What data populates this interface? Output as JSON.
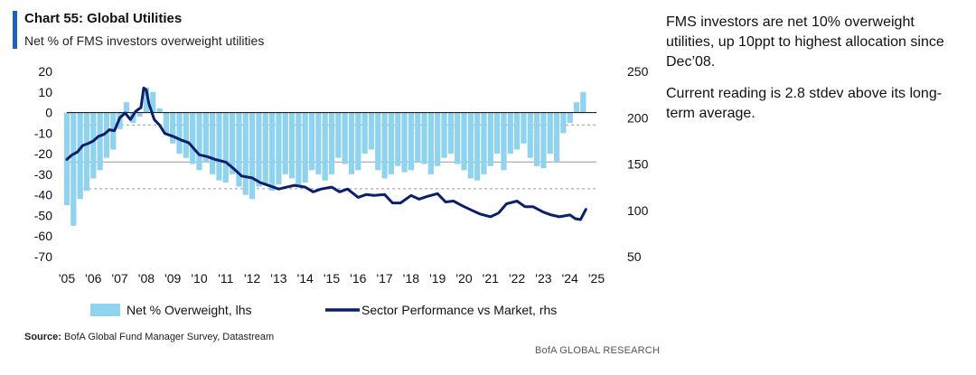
{
  "header": {
    "title": "Chart 55: Global Utilities",
    "subtitle": "Net % of FMS investors overweight utilities",
    "accent_color": "#1f5fbf"
  },
  "commentary": [
    "FMS investors are net 10% overweight utilities, up 10ppt to highest allocation since Dec’08.",
    "Current reading is 2.8 stdev above its long-term average."
  ],
  "source": {
    "label": "Source:",
    "text": " BofA Global Fund Manager Survey, Datastream"
  },
  "footer": "BofA GLOBAL RESEARCH",
  "chart_data": {
    "type": "bar+line",
    "x_tick_labels": [
      "'05",
      "'06",
      "'07",
      "'08",
      "'09",
      "'10",
      "'11",
      "'12",
      "'13",
      "'14",
      "'15",
      "'16",
      "'17",
      "'18",
      "'19",
      "'20",
      "'21",
      "'22",
      "'23",
      "'24",
      "'25"
    ],
    "xlim": [
      2005,
      2025
    ],
    "ylim_left": [
      -70,
      20
    ],
    "yticks_left": [
      20,
      10,
      0,
      -10,
      -20,
      -30,
      -40,
      -50,
      -60,
      -70
    ],
    "ylim_right": [
      50,
      250
    ],
    "yticks_right": [
      250,
      200,
      150,
      100,
      50
    ],
    "reference_lines_lhs": [
      -6,
      -24,
      -37
    ],
    "legend_position": "bottom",
    "colors": {
      "bars": "#8fd3ee",
      "line": "#0b1f6b",
      "zero_line": "#222222",
      "ref_lines": "#9a9a9a"
    },
    "series": [
      {
        "name": "Net % Overweight, lhs",
        "axis": "left",
        "style": "bar",
        "x": [
          2005.0,
          2005.25,
          2005.5,
          2005.75,
          2006.0,
          2006.25,
          2006.5,
          2006.75,
          2007.0,
          2007.25,
          2007.5,
          2007.75,
          2008.0,
          2008.25,
          2008.5,
          2008.75,
          2009.0,
          2009.25,
          2009.5,
          2009.75,
          2010.0,
          2010.25,
          2010.5,
          2010.75,
          2011.0,
          2011.25,
          2011.5,
          2011.75,
          2012.0,
          2012.25,
          2012.5,
          2012.75,
          2013.0,
          2013.25,
          2013.5,
          2013.75,
          2014.0,
          2014.25,
          2014.5,
          2014.75,
          2015.0,
          2015.25,
          2015.5,
          2015.75,
          2016.0,
          2016.25,
          2016.5,
          2016.75,
          2017.0,
          2017.25,
          2017.5,
          2017.75,
          2018.0,
          2018.25,
          2018.5,
          2018.75,
          2019.0,
          2019.25,
          2019.5,
          2019.75,
          2020.0,
          2020.25,
          2020.5,
          2020.75,
          2021.0,
          2021.25,
          2021.5,
          2021.75,
          2022.0,
          2022.25,
          2022.5,
          2022.75,
          2023.0,
          2023.25,
          2023.5,
          2023.75,
          2024.0,
          2024.25,
          2024.5
        ],
        "values": [
          -45,
          -55,
          -42,
          -38,
          -32,
          -28,
          -22,
          -18,
          -8,
          5,
          -5,
          -2,
          12,
          10,
          2,
          -10,
          -15,
          -20,
          -22,
          -25,
          -28,
          -24,
          -30,
          -33,
          -34,
          -30,
          -36,
          -40,
          -42,
          -36,
          -35,
          -38,
          -35,
          -30,
          -32,
          -36,
          -34,
          -28,
          -30,
          -33,
          -30,
          -22,
          -25,
          -30,
          -28,
          -20,
          -18,
          -28,
          -32,
          -30,
          -26,
          -29,
          -28,
          -24,
          -25,
          -30,
          -26,
          -22,
          -20,
          -25,
          -28,
          -32,
          -33,
          -30,
          -26,
          -20,
          -28,
          -20,
          -18,
          -15,
          -22,
          -26,
          -27,
          -20,
          -24,
          -10,
          -5,
          5,
          10
        ]
      },
      {
        "name": "Sector Performance vs Market, rhs",
        "axis": "right",
        "style": "line",
        "x": [
          2005.0,
          2005.2,
          2005.4,
          2005.6,
          2005.8,
          2006.0,
          2006.2,
          2006.4,
          2006.6,
          2006.8,
          2007.0,
          2007.2,
          2007.4,
          2007.6,
          2007.8,
          2007.9,
          2008.0,
          2008.1,
          2008.3,
          2008.5,
          2008.7,
          2009.0,
          2009.3,
          2009.6,
          2010.0,
          2010.3,
          2010.6,
          2011.0,
          2011.3,
          2011.6,
          2012.0,
          2012.3,
          2012.6,
          2013.0,
          2013.3,
          2013.6,
          2014.0,
          2014.3,
          2014.6,
          2015.0,
          2015.3,
          2015.6,
          2016.0,
          2016.3,
          2016.6,
          2017.0,
          2017.3,
          2017.6,
          2018.0,
          2018.3,
          2018.6,
          2019.0,
          2019.3,
          2019.6,
          2020.0,
          2020.3,
          2020.6,
          2021.0,
          2021.3,
          2021.6,
          2022.0,
          2022.3,
          2022.6,
          2023.0,
          2023.3,
          2023.6,
          2024.0,
          2024.2,
          2024.4,
          2024.6
        ],
        "values": [
          155,
          160,
          163,
          170,
          172,
          175,
          180,
          182,
          187,
          186,
          200,
          205,
          198,
          207,
          211,
          232,
          230,
          215,
          198,
          192,
          183,
          180,
          176,
          173,
          160,
          158,
          155,
          152,
          145,
          137,
          135,
          130,
          127,
          123,
          125,
          127,
          125,
          120,
          123,
          125,
          120,
          123,
          114,
          117,
          116,
          117,
          108,
          108,
          116,
          112,
          115,
          118,
          109,
          110,
          104,
          100,
          96,
          93,
          97,
          107,
          110,
          104,
          104,
          98,
          95,
          93,
          95,
          91,
          90,
          101
        ]
      }
    ]
  }
}
